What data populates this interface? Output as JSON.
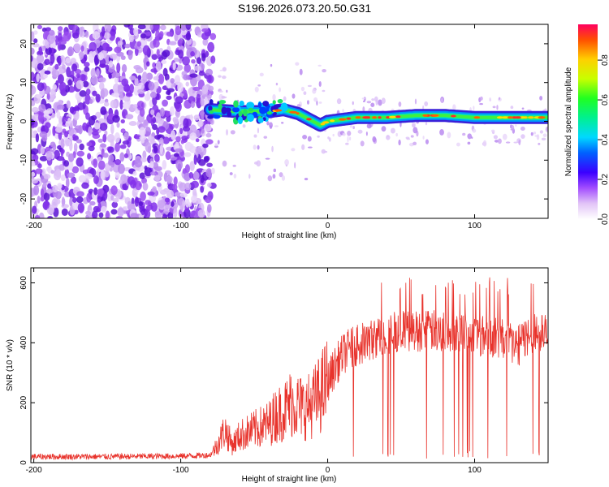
{
  "title": "S196.2026.073.20.50.G31",
  "colors": {
    "snr_line": "#e8332c",
    "weak_speckle": "#c9a2f5",
    "strong_speckle": "#7f1de8",
    "axis": "#000000"
  },
  "chart_data": [
    {
      "type": "heatmap",
      "xlabel": "Height of straight line (km)",
      "ylabel": "Frequency (Hz)",
      "xlim": [
        -202,
        150
      ],
      "ylim": [
        -25,
        25
      ],
      "xticks": [
        -200,
        -100,
        0,
        100
      ],
      "yticks": [
        -20,
        -10,
        0,
        10,
        20
      ],
      "colorbar": {
        "label": "Normalized spectral amplitude",
        "range": [
          0,
          0.98
        ],
        "ticks": [
          0.0,
          0.2,
          0.4,
          0.6,
          0.8
        ],
        "colormap": [
          "#ffffff",
          "#d8b8f5",
          "#8a2be2",
          "#0000ff",
          "#00e0ff",
          "#00ff60",
          "#c8ff00",
          "#ffd000",
          "#ff5000",
          "#ff0060"
        ]
      },
      "ridge": [
        {
          "x": -80,
          "y": 3
        },
        {
          "x": -60,
          "y": 2.5
        },
        {
          "x": -40,
          "y": 2.5
        },
        {
          "x": -30,
          "y": 3
        },
        {
          "x": -20,
          "y": 2
        },
        {
          "x": -10,
          "y": 0
        },
        {
          "x": -5,
          "y": -1
        },
        {
          "x": 0,
          "y": 0
        },
        {
          "x": 20,
          "y": 1
        },
        {
          "x": 40,
          "y": 1
        },
        {
          "x": 60,
          "y": 1.5
        },
        {
          "x": 80,
          "y": 1.5
        },
        {
          "x": 100,
          "y": 1
        },
        {
          "x": 120,
          "y": 1
        },
        {
          "x": 150,
          "y": 1
        }
      ]
    },
    {
      "type": "line",
      "xlabel": "Height of straight line (km)",
      "ylabel": "SNR (10 * v/v)",
      "xlim": [
        -202,
        150
      ],
      "ylim": [
        0,
        650
      ],
      "xticks": [
        -200,
        -100,
        0,
        100
      ],
      "yticks": [
        0,
        200,
        400,
        600
      ],
      "series": [
        {
          "x": [
            -202,
            -150,
            -100,
            -80,
            -75,
            -70,
            -65,
            -60,
            -50,
            -40,
            -35,
            -30,
            -25,
            -20,
            -15,
            -10,
            -5,
            0,
            5,
            10,
            15,
            20,
            25,
            30,
            35,
            40,
            45,
            50,
            60,
            70,
            80,
            90,
            100,
            110,
            120,
            125,
            130,
            135,
            140,
            145,
            150
          ],
          "y": [
            20,
            20,
            22,
            25,
            60,
            110,
            60,
            90,
            110,
            130,
            160,
            170,
            200,
            190,
            180,
            200,
            230,
            270,
            320,
            360,
            380,
            390,
            400,
            410,
            420,
            430,
            435,
            440,
            440,
            440,
            440,
            440,
            430,
            420,
            410,
            400,
            390,
            420,
            430,
            440,
            420
          ]
        }
      ]
    }
  ]
}
